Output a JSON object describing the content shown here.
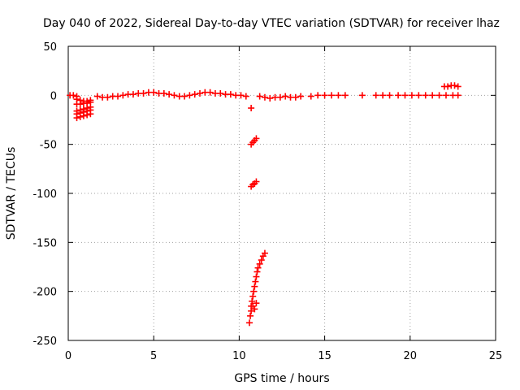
{
  "chart_data": {
    "type": "scatter",
    "title": "Day 040 of 2022, Sidereal Day-to-day VTEC variation (SDTVAR) for receiver lhaz",
    "xlabel": "GPS time / hours",
    "ylabel": "SDTVAR / TECUs",
    "xlim": [
      0,
      25
    ],
    "ylim": [
      -250,
      50
    ],
    "xticks": [
      "0",
      "5",
      "10",
      "15",
      "20",
      "25"
    ],
    "yticks": [
      "50",
      "0",
      "-50",
      "-100",
      "-150",
      "-200",
      "-250"
    ],
    "grid": true,
    "marker": "+",
    "series": [
      {
        "name": "SDTVAR",
        "color": "#ff0000",
        "points": [
          [
            0.1,
            0
          ],
          [
            0.3,
            0
          ],
          [
            0.5,
            -1
          ],
          [
            0.5,
            -4
          ],
          [
            0.7,
            -5
          ],
          [
            0.9,
            -6
          ],
          [
            1.1,
            -6
          ],
          [
            1.3,
            -5
          ],
          [
            0.5,
            -9
          ],
          [
            0.7,
            -9
          ],
          [
            0.9,
            -8
          ],
          [
            1.1,
            -8
          ],
          [
            1.3,
            -7
          ],
          [
            0.5,
            -16
          ],
          [
            0.7,
            -15
          ],
          [
            0.9,
            -14
          ],
          [
            1.1,
            -13
          ],
          [
            1.3,
            -12
          ],
          [
            0.5,
            -19
          ],
          [
            0.7,
            -18
          ],
          [
            0.9,
            -17
          ],
          [
            1.1,
            -16
          ],
          [
            1.3,
            -15
          ],
          [
            0.5,
            -23
          ],
          [
            0.7,
            -22
          ],
          [
            0.9,
            -21
          ],
          [
            1.1,
            -20
          ],
          [
            1.3,
            -19
          ],
          [
            1.7,
            -1
          ],
          [
            2.0,
            -2
          ],
          [
            2.3,
            -2
          ],
          [
            2.6,
            -1
          ],
          [
            2.9,
            -1
          ],
          [
            3.2,
            0
          ],
          [
            3.5,
            1
          ],
          [
            3.8,
            1
          ],
          [
            4.1,
            2
          ],
          [
            4.4,
            2
          ],
          [
            4.7,
            3
          ],
          [
            5.0,
            3
          ],
          [
            5.3,
            2
          ],
          [
            5.6,
            2
          ],
          [
            5.9,
            1
          ],
          [
            6.2,
            0
          ],
          [
            6.5,
            -1
          ],
          [
            6.8,
            -1
          ],
          [
            7.1,
            0
          ],
          [
            7.4,
            1
          ],
          [
            7.7,
            2
          ],
          [
            8.0,
            3
          ],
          [
            8.3,
            3
          ],
          [
            8.6,
            2
          ],
          [
            8.9,
            2
          ],
          [
            9.2,
            1
          ],
          [
            9.5,
            1
          ],
          [
            9.8,
            0
          ],
          [
            10.1,
            0
          ],
          [
            10.4,
            -1
          ],
          [
            10.7,
            -13
          ],
          [
            10.7,
            -50
          ],
          [
            10.8,
            -48
          ],
          [
            10.9,
            -46
          ],
          [
            11.0,
            -44
          ],
          [
            10.7,
            -93
          ],
          [
            10.8,
            -91
          ],
          [
            10.9,
            -90
          ],
          [
            11.0,
            -88
          ],
          [
            10.6,
            -232
          ],
          [
            10.65,
            -225
          ],
          [
            10.7,
            -215
          ],
          [
            10.75,
            -210
          ],
          [
            10.8,
            -205
          ],
          [
            10.85,
            -200
          ],
          [
            10.9,
            -195
          ],
          [
            10.95,
            -190
          ],
          [
            11.0,
            -185
          ],
          [
            11.05,
            -180
          ],
          [
            11.1,
            -176
          ],
          [
            11.2,
            -172
          ],
          [
            11.3,
            -168
          ],
          [
            11.4,
            -164
          ],
          [
            11.5,
            -161
          ],
          [
            10.7,
            -220
          ],
          [
            10.8,
            -215
          ],
          [
            10.9,
            -218
          ],
          [
            11.0,
            -212
          ],
          [
            11.2,
            -1
          ],
          [
            11.5,
            -2
          ],
          [
            11.8,
            -3
          ],
          [
            12.1,
            -2
          ],
          [
            12.4,
            -2
          ],
          [
            12.7,
            -1
          ],
          [
            13.0,
            -2
          ],
          [
            13.3,
            -2
          ],
          [
            13.6,
            -1
          ],
          [
            14.2,
            -1
          ],
          [
            14.6,
            0
          ],
          [
            15.0,
            0
          ],
          [
            15.4,
            0
          ],
          [
            15.8,
            0
          ],
          [
            16.2,
            0
          ],
          [
            17.2,
            0
          ],
          [
            18.0,
            0
          ],
          [
            18.4,
            0
          ],
          [
            18.8,
            0
          ],
          [
            19.3,
            0
          ],
          [
            19.7,
            0
          ],
          [
            20.1,
            0
          ],
          [
            20.5,
            0
          ],
          [
            20.9,
            0
          ],
          [
            21.3,
            0
          ],
          [
            21.7,
            0
          ],
          [
            22.1,
            0
          ],
          [
            22.5,
            0
          ],
          [
            22.8,
            0
          ],
          [
            22.0,
            9
          ],
          [
            22.2,
            9
          ],
          [
            22.4,
            10
          ],
          [
            22.6,
            10
          ],
          [
            22.8,
            9
          ]
        ]
      }
    ]
  }
}
